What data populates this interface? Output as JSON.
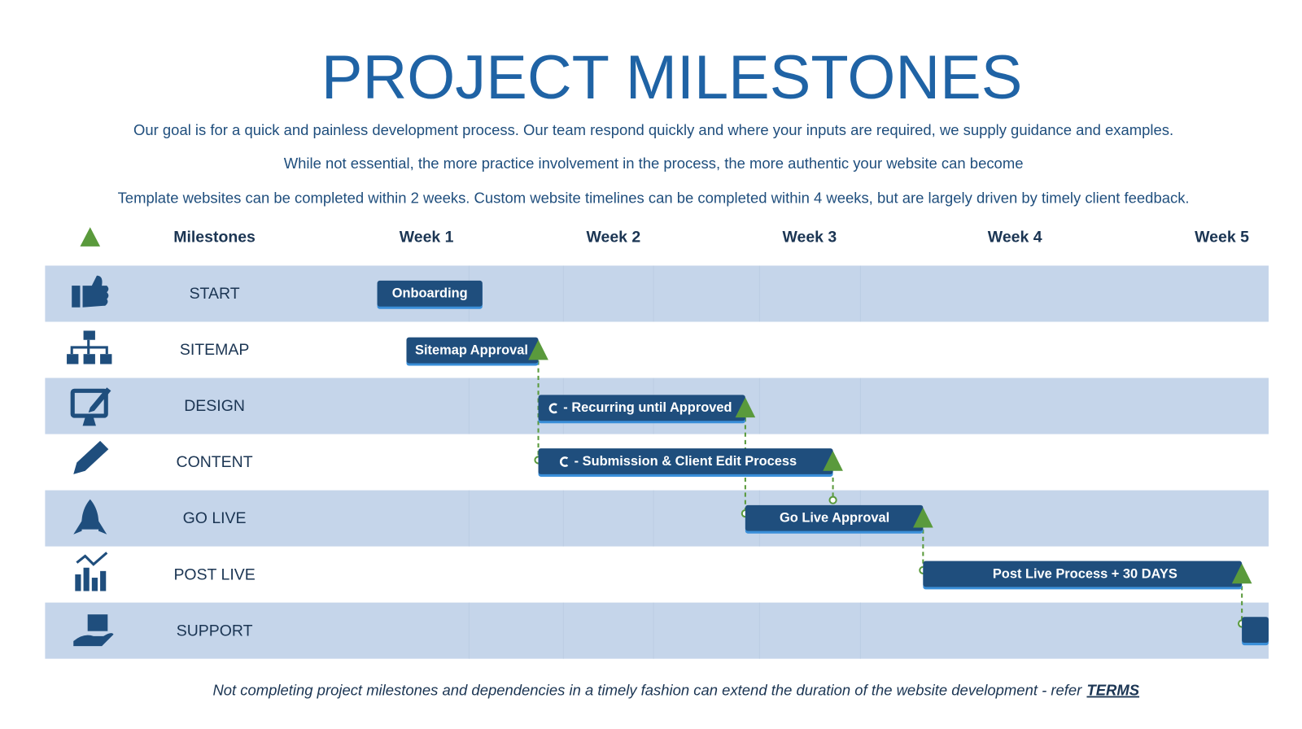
{
  "header": {
    "title": "PROJECT MILESTONES",
    "paragraphs": [
      "Our goal is for a quick and painless development process. Our team respond quickly and where your inputs are required, we supply guidance and examples.",
      "While not essential, the more practice involvement in the process, the more authentic your website can become",
      "Template websites can be completed within 2 weeks. Custom website timelines can be completed within 4 weeks, but are largely driven by timely client feedback."
    ]
  },
  "table": {
    "columns": [
      "Milestones",
      "Week 1",
      "Week 2",
      "Week 3",
      "Week 4",
      "Week 5"
    ],
    "rows": [
      {
        "label": "START",
        "task": "Onboarding"
      },
      {
        "label": "SITEMAP",
        "task": "Sitemap Approval"
      },
      {
        "label": "DESIGN",
        "task": "- Recurring until Approved"
      },
      {
        "label": "CONTENT",
        "task": "-  Submission & Client Edit Process"
      },
      {
        "label": "GO LIVE",
        "task": "Go Live Approval"
      },
      {
        "label": "POST LIVE",
        "task": "Post Live Process + 30 DAYS"
      },
      {
        "label": "SUPPORT"
      }
    ]
  },
  "footer": {
    "text": "Not completing project milestones and dependencies in a timely fashion can extend the duration of the website development - refer",
    "link": "TERMS"
  }
}
